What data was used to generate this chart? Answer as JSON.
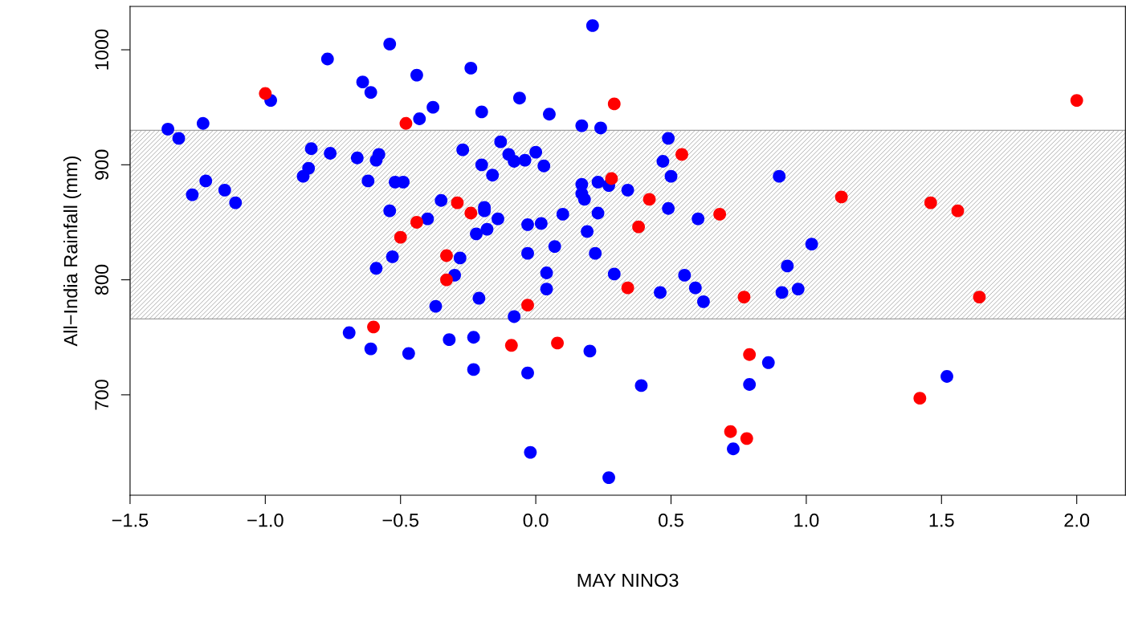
{
  "chart_data": {
    "type": "scatter",
    "xlabel": "MAY NINO3",
    "ylabel": "All−India Rainfall (mm)",
    "marker": "circle",
    "xlim": [
      -1.5,
      2.18
    ],
    "ylim": [
      612.7,
      1037.7
    ],
    "xticks": [
      {
        "value": -1.5,
        "label": "−1.5"
      },
      {
        "value": -1.0,
        "label": "−1.0"
      },
      {
        "value": -0.5,
        "label": "−0.5"
      },
      {
        "value": 0.0,
        "label": "0.0"
      },
      {
        "value": 0.5,
        "label": "0.5"
      },
      {
        "value": 1.0,
        "label": "1.0"
      },
      {
        "value": 1.5,
        "label": "1.5"
      },
      {
        "value": 2.0,
        "label": "2.0"
      }
    ],
    "yticks": [
      700,
      800,
      900,
      1000
    ],
    "bands": [
      {
        "axis": "y",
        "from": 766,
        "to": 930,
        "color": "#a0a0a0"
      }
    ],
    "series": [
      {
        "color": "#0000ff",
        "x": [
          -1.36,
          -1.32,
          -1.27,
          -1.23,
          -1.22,
          -1.15,
          -1.11,
          -0.98,
          -0.86,
          -0.84,
          -0.83,
          -0.76,
          -0.77,
          -0.69,
          -0.64,
          -0.66,
          -0.62,
          -0.61,
          -0.61,
          -0.59,
          -0.59,
          -0.58,
          -0.54,
          -0.54,
          -0.53,
          -0.52,
          -0.49,
          -0.47,
          -0.44,
          -0.43,
          -0.4,
          -0.38,
          -0.37,
          -0.35,
          -0.32,
          -0.3,
          -0.28,
          -0.27,
          -0.24,
          -0.23,
          -0.23,
          -0.22,
          -0.21,
          -0.2,
          -0.2,
          -0.19,
          -0.19,
          -0.18,
          -0.16,
          -0.14,
          -0.13,
          -0.1,
          -0.08,
          -0.08,
          -0.06,
          -0.04,
          -0.03,
          -0.03,
          -0.03,
          -0.02,
          0.0,
          0.02,
          0.03,
          0.04,
          0.04,
          0.05,
          0.07,
          0.1,
          0.17,
          0.17,
          0.17,
          0.18,
          0.19,
          0.2,
          0.21,
          0.22,
          0.23,
          0.23,
          0.24,
          0.27,
          0.27,
          0.29,
          0.34,
          0.39,
          0.46,
          0.49,
          0.49,
          0.5,
          0.47,
          0.55,
          0.59,
          0.6,
          0.62,
          0.73,
          0.79,
          0.86,
          0.9,
          0.91,
          0.93,
          0.97,
          1.02,
          1.52
        ],
        "values": [
          931,
          923,
          874,
          936,
          886,
          878,
          867,
          956,
          890,
          897,
          914,
          910,
          992,
          754,
          972,
          906,
          886,
          740,
          963,
          810,
          904,
          909,
          1005,
          860,
          820,
          885,
          885,
          736,
          978,
          940,
          853,
          950,
          777,
          869,
          748,
          804,
          819,
          913,
          984,
          750,
          722,
          840,
          784,
          900,
          946,
          863,
          860,
          844,
          891,
          853,
          920,
          909,
          903,
          768,
          958,
          904,
          848,
          719,
          823,
          650,
          911,
          849,
          899,
          806,
          792,
          944,
          829,
          857,
          934,
          883,
          875,
          870,
          842,
          738,
          1021,
          823,
          885,
          858,
          932,
          882,
          628,
          805,
          878,
          708,
          789,
          923,
          862,
          890,
          903,
          804,
          793,
          853,
          781,
          653,
          709,
          728,
          890,
          789,
          812,
          792,
          831,
          716
        ]
      },
      {
        "color": "#ff0000",
        "x": [
          -1.0,
          -0.6,
          -0.5,
          -0.48,
          -0.44,
          -0.33,
          -0.33,
          -0.29,
          -0.24,
          -0.09,
          -0.03,
          0.08,
          0.28,
          0.29,
          0.34,
          0.38,
          0.42,
          0.54,
          0.68,
          0.72,
          0.77,
          0.78,
          0.79,
          1.13,
          1.42,
          1.46,
          1.56,
          1.64,
          2.0
        ],
        "values": [
          962,
          759,
          837,
          936,
          850,
          821,
          800,
          867,
          858,
          743,
          778,
          745,
          888,
          953,
          793,
          846,
          870,
          909,
          857,
          668,
          785,
          662,
          735,
          872,
          697,
          867,
          860,
          785,
          956
        ]
      }
    ]
  }
}
